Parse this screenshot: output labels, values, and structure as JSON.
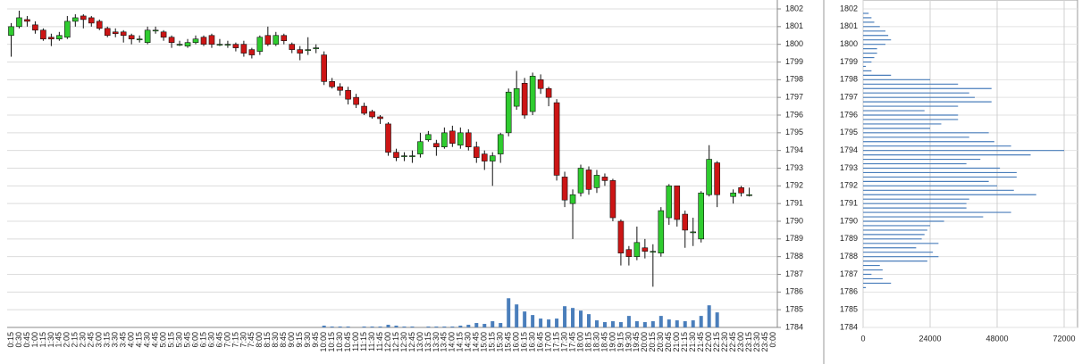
{
  "chart_data": [
    {
      "type": "candlestick",
      "categories": [
        "0:15",
        "0:30",
        "0:45",
        "1:00",
        "1:15",
        "1:30",
        "1:45",
        "2:00",
        "2:15",
        "2:30",
        "2:45",
        "3:00",
        "3:15",
        "3:30",
        "3:45",
        "4:00",
        "4:15",
        "4:30",
        "4:45",
        "5:00",
        "5:15",
        "5:30",
        "5:45",
        "6:00",
        "6:15",
        "6:30",
        "6:45",
        "7:00",
        "7:15",
        "7:30",
        "7:45",
        "8:00",
        "8:15",
        "8:30",
        "8:45",
        "9:00",
        "9:15",
        "9:30",
        "9:45",
        "10:00",
        "10:15",
        "10:30",
        "10:45",
        "11:00",
        "11:15",
        "11:30",
        "11:45",
        "12:00",
        "12:15",
        "12:30",
        "12:45",
        "13:00",
        "13:15",
        "13:30",
        "13:45",
        "14:00",
        "14:15",
        "14:30",
        "14:45",
        "15:00",
        "15:15",
        "15:30",
        "15:45",
        "16:00",
        "16:15",
        "16:30",
        "16:45",
        "17:00",
        "17:15",
        "17:30",
        "17:45",
        "18:00",
        "18:15",
        "18:30",
        "18:45",
        "19:00",
        "19:15",
        "19:30",
        "19:45",
        "20:00",
        "20:15",
        "20:30",
        "20:45",
        "21:00",
        "21:15",
        "21:30",
        "21:45",
        "22:00",
        "22:15",
        "22:30",
        "22:45",
        "23:00",
        "23:15",
        "23:30",
        "23:45",
        "0:00"
      ],
      "open": [
        1800.5,
        1801.0,
        1801.4,
        1801.1,
        1800.8,
        1800.4,
        1800.3,
        1800.4,
        1801.3,
        1801.6,
        1801.5,
        1801.3,
        1800.9,
        1800.7,
        1800.7,
        1800.5,
        1800.3,
        1800.1,
        1800.8,
        1800.7,
        1800.4,
        1800.0,
        1799.9,
        1800.1,
        1800.4,
        1800.5,
        1800.0,
        1800.0,
        1800.0,
        1800.0,
        1799.7,
        1799.6,
        1800.5,
        1800.0,
        1800.5,
        1800.0,
        1799.7,
        1799.7,
        1799.8,
        1799.4,
        1797.9,
        1797.6,
        1797.4,
        1797.0,
        1796.5,
        1796.2,
        1795.9,
        1795.5,
        1793.9,
        1793.7,
        1793.7,
        1793.8,
        1794.6,
        1794.4,
        1794.2,
        1795.1,
        1794.3,
        1795.0,
        1794.2,
        1793.8,
        1793.4,
        1793.8,
        1795.0,
        1796.5,
        1797.8,
        1796.2,
        1798.0,
        1797.5,
        1796.7,
        1792.5,
        1791.0,
        1791.6,
        1792.9,
        1791.9,
        1792.5,
        1792.3,
        1790.0,
        1788.4,
        1788.0,
        1788.5,
        1788.3,
        1788.2,
        1790.2,
        1792.0,
        1790.4,
        1789.4,
        1789.0,
        1791.5,
        1793.3,
        null,
        1791.4,
        1791.9,
        1791.5,
        null,
        null,
        null
      ],
      "high": [
        1801.2,
        1801.9,
        1801.6,
        1801.3,
        1800.9,
        1800.6,
        1800.7,
        1801.6,
        1801.7,
        1801.7,
        1801.6,
        1801.4,
        1801.0,
        1800.9,
        1800.8,
        1800.6,
        1800.5,
        1801.0,
        1801.0,
        1800.8,
        1800.5,
        1800.2,
        1800.3,
        1800.5,
        1800.5,
        1800.6,
        1800.3,
        1800.2,
        1800.1,
        1800.2,
        1799.8,
        1800.5,
        1801.0,
        1800.7,
        1800.6,
        1800.1,
        1799.9,
        1800.4,
        1800.0,
        1799.6,
        1798.1,
        1797.8,
        1797.6,
        1797.2,
        1796.7,
        1796.3,
        1796.0,
        1795.6,
        1794.1,
        1793.9,
        1794.0,
        1795.0,
        1795.1,
        1794.6,
        1795.3,
        1795.4,
        1795.3,
        1795.2,
        1794.5,
        1794.0,
        1793.9,
        1795.0,
        1797.5,
        1798.5,
        1798.1,
        1798.4,
        1798.3,
        1797.6,
        1796.9,
        1792.8,
        1791.8,
        1793.2,
        1793.1,
        1792.9,
        1792.7,
        1792.4,
        1790.1,
        1788.6,
        1789.7,
        1789.0,
        1788.7,
        1790.8,
        1792.1,
        1792.0,
        1790.6,
        1790.2,
        1791.7,
        1794.3,
        1793.4,
        null,
        1791.8,
        1792.0,
        1791.9,
        null,
        null,
        null
      ],
      "low": [
        1799.3,
        1800.9,
        1801.0,
        1800.6,
        1800.2,
        1799.9,
        1800.2,
        1800.3,
        1801.0,
        1800.9,
        1801.0,
        1800.8,
        1800.4,
        1800.4,
        1800.1,
        1800.0,
        1800.1,
        1800.0,
        1800.6,
        1800.2,
        1799.8,
        1799.9,
        1799.8,
        1800.0,
        1799.9,
        1799.8,
        1799.9,
        1799.8,
        1799.6,
        1799.3,
        1799.2,
        1799.4,
        1799.9,
        1799.9,
        1800.0,
        1799.5,
        1799.1,
        1799.4,
        1799.5,
        1797.7,
        1797.5,
        1797.1,
        1796.6,
        1796.4,
        1796.0,
        1795.8,
        1795.5,
        1793.7,
        1793.4,
        1793.4,
        1793.3,
        1793.6,
        1794.5,
        1793.7,
        1794.1,
        1794.2,
        1794.1,
        1794.0,
        1793.3,
        1792.9,
        1792.0,
        1793.3,
        1794.8,
        1796.3,
        1795.8,
        1796.0,
        1797.2,
        1796.5,
        1792.3,
        1790.8,
        1789.0,
        1791.4,
        1791.5,
        1791.6,
        1792.0,
        1790.0,
        1787.5,
        1787.5,
        1787.8,
        1787.9,
        1786.3,
        1788.0,
        1789.8,
        1789.7,
        1788.5,
        1788.6,
        1788.8,
        1791.4,
        1790.8,
        null,
        1791.0,
        1791.4,
        1791.4,
        null,
        null,
        null
      ],
      "close": [
        1801.0,
        1801.5,
        1801.3,
        1800.8,
        1800.3,
        1800.3,
        1800.5,
        1801.3,
        1801.5,
        1801.4,
        1801.2,
        1800.9,
        1800.5,
        1800.6,
        1800.5,
        1800.3,
        1800.3,
        1800.8,
        1800.8,
        1800.4,
        1800.1,
        1800.0,
        1800.1,
        1800.3,
        1800.0,
        1800.0,
        1800.0,
        1800.0,
        1799.8,
        1799.5,
        1799.4,
        1800.4,
        1800.0,
        1800.5,
        1800.2,
        1799.7,
        1799.5,
        1799.7,
        1799.8,
        1797.9,
        1797.6,
        1797.4,
        1796.9,
        1796.6,
        1796.1,
        1795.9,
        1795.8,
        1793.9,
        1793.6,
        1793.7,
        1793.7,
        1794.5,
        1794.9,
        1794.2,
        1795.0,
        1794.4,
        1795.0,
        1794.2,
        1793.6,
        1793.4,
        1793.7,
        1794.9,
        1797.3,
        1797.5,
        1796.0,
        1798.2,
        1797.5,
        1797.0,
        1792.6,
        1791.2,
        1791.5,
        1793.0,
        1791.8,
        1792.6,
        1792.3,
        1790.2,
        1788.2,
        1788.0,
        1788.8,
        1788.3,
        1788.3,
        1790.6,
        1792.0,
        1790.1,
        1789.5,
        1789.4,
        1791.6,
        1793.5,
        1791.5,
        null,
        1791.6,
        1791.6,
        1791.5,
        null,
        null,
        null
      ],
      "volume": [
        0,
        0,
        0,
        0,
        0,
        0,
        0,
        0,
        0,
        0,
        0,
        0,
        0,
        0,
        0,
        0,
        0,
        0,
        0,
        0,
        0,
        0,
        0,
        0,
        0,
        0,
        0,
        0,
        0,
        0,
        0,
        0,
        0,
        0,
        0,
        0,
        0,
        0,
        0,
        2,
        1,
        1,
        1,
        0,
        1,
        1,
        1,
        3,
        2,
        1,
        1,
        0,
        1,
        1,
        1,
        1,
        2,
        3,
        5,
        4,
        7,
        5,
        33,
        26,
        18,
        14,
        10,
        9,
        10,
        24,
        22,
        19,
        15,
        8,
        6,
        7,
        6,
        13,
        7,
        6,
        7,
        13,
        9,
        8,
        7,
        8,
        13,
        25,
        17,
        0,
        0,
        0,
        0,
        0,
        0,
        0
      ],
      "volume_ylim": [
        0,
        360
      ],
      "up_color": "#2fcc2f",
      "down_color": "#cc1515",
      "volume_color": "#4a7ebb",
      "ylim": [
        1784,
        1802
      ],
      "yticks": [
        1784,
        1785,
        1786,
        1787,
        1788,
        1789,
        1790,
        1791,
        1792,
        1793,
        1794,
        1795,
        1796,
        1797,
        1798,
        1799,
        1800,
        1801,
        1802
      ],
      "grid": true
    },
    {
      "type": "profile",
      "y": [
        1801.75,
        1801.5,
        1801.25,
        1801.0,
        1800.75,
        1800.5,
        1800.25,
        1800.0,
        1799.75,
        1799.5,
        1799.25,
        1799.0,
        1798.75,
        1798.5,
        1798.25,
        1798.0,
        1797.75,
        1797.5,
        1797.25,
        1797.0,
        1796.75,
        1796.5,
        1796.25,
        1796.0,
        1795.75,
        1795.5,
        1795.25,
        1795.0,
        1794.75,
        1794.5,
        1794.25,
        1794.0,
        1793.75,
        1793.5,
        1793.25,
        1793.0,
        1792.75,
        1792.5,
        1792.25,
        1792.0,
        1791.75,
        1791.5,
        1791.25,
        1791.0,
        1790.75,
        1790.5,
        1790.25,
        1790.0,
        1789.75,
        1789.5,
        1789.25,
        1789.0,
        1788.75,
        1788.5,
        1788.25,
        1788.0,
        1787.75,
        1787.5,
        1787.25,
        1787.0,
        1786.75,
        1786.5,
        1786.25
      ],
      "values": [
        2000,
        3000,
        4000,
        6000,
        8000,
        9000,
        10000,
        8000,
        5000,
        5000,
        4000,
        3000,
        1000,
        3000,
        10000,
        24000,
        34000,
        46000,
        38000,
        40000,
        46000,
        34000,
        22000,
        34000,
        34000,
        28000,
        24000,
        45000,
        38000,
        47000,
        53000,
        72000,
        60000,
        42000,
        37000,
        49000,
        55000,
        55000,
        45000,
        48000,
        54000,
        62000,
        38000,
        37000,
        37000,
        53000,
        43000,
        29000,
        24000,
        23000,
        22000,
        21000,
        27000,
        19000,
        25000,
        27000,
        23000,
        6000,
        7000,
        3000,
        7000,
        10000,
        1000
      ],
      "color": "#4a7ebb",
      "xlim": [
        0,
        72000
      ],
      "xticks": [
        0,
        24000,
        48000,
        72000
      ],
      "ylim": [
        1784,
        1802
      ],
      "yticks": [
        1784,
        1785,
        1786,
        1787,
        1788,
        1789,
        1790,
        1791,
        1792,
        1793,
        1794,
        1795,
        1796,
        1797,
        1798,
        1799,
        1800,
        1801,
        1802
      ],
      "grid": true
    }
  ]
}
